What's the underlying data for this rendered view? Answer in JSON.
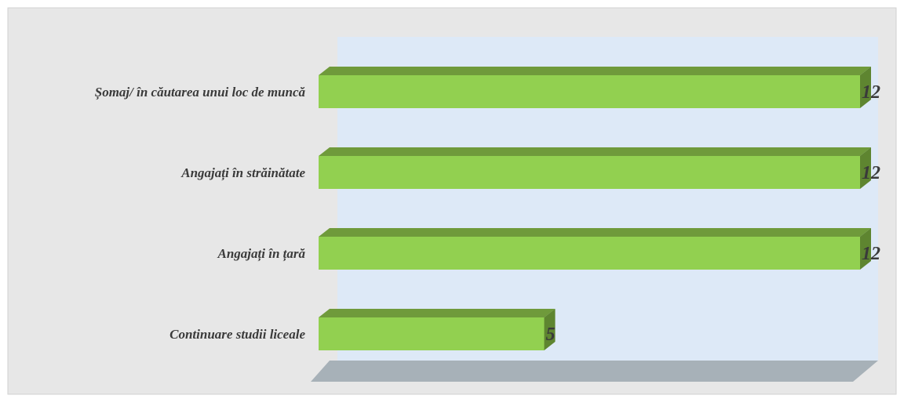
{
  "chart_data": {
    "type": "bar",
    "orientation": "horizontal",
    "style": "3d",
    "categories": [
      "Șomaj/ în căutarea unui loc de muncă",
      "Angajați în străinătate",
      "Angajați în țară",
      "Continuare studii liceale"
    ],
    "values": [
      12,
      12,
      12,
      5
    ],
    "xlim": [
      0,
      12
    ],
    "grid": false,
    "legend": "none",
    "data_labels": true
  },
  "colors": {
    "page_background": "#e7e7e7",
    "wall": "#dde9f7",
    "floor": "#a7b1b8",
    "bar_front": "#92d050",
    "bar_top": "#6f9a3b",
    "bar_side": "#5e8530",
    "label_text": "#3a3a3a"
  }
}
